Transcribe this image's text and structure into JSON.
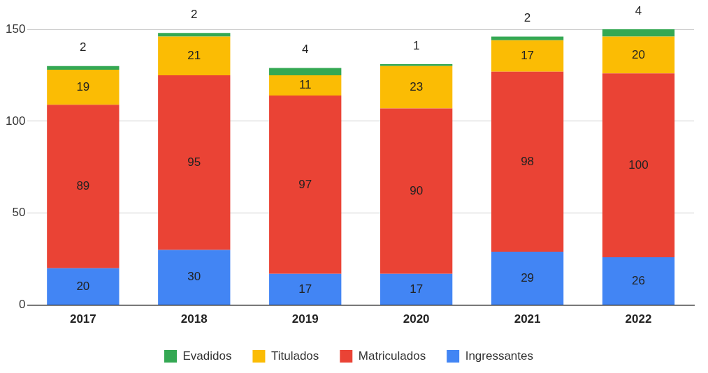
{
  "chart_data": {
    "type": "bar",
    "stacked": true,
    "categories": [
      "2017",
      "2018",
      "2019",
      "2020",
      "2021",
      "2022"
    ],
    "series": [
      {
        "name": "Ingressantes",
        "color": "#4285f4",
        "values": [
          20,
          30,
          17,
          17,
          29,
          26
        ]
      },
      {
        "name": "Matriculados",
        "color": "#ea4335",
        "values": [
          89,
          95,
          97,
          90,
          98,
          100
        ]
      },
      {
        "name": "Titulados",
        "color": "#fbbc04",
        "values": [
          19,
          21,
          11,
          23,
          17,
          20
        ]
      },
      {
        "name": "Evadidos",
        "color": "#34a853",
        "values": [
          2,
          2,
          4,
          1,
          2,
          4
        ]
      }
    ],
    "ylim": [
      0,
      150
    ],
    "yticks": [
      0,
      50,
      100,
      150
    ],
    "grid": "y",
    "legend": "bottom",
    "data_labels": true
  }
}
